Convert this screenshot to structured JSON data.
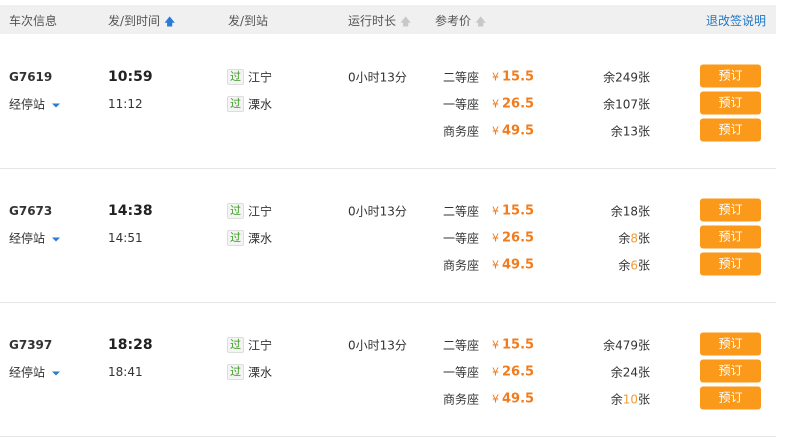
{
  "header": {
    "train_info": "车次信息",
    "dep_arr_time": "发/到时间",
    "dep_arr_station": "发/到站",
    "duration": "运行时长",
    "ref_price": "参考价",
    "refund_link": "退改签说明",
    "sort_icon_active": "arrow-up-icon",
    "colors": {
      "accent": "#2a7ad6",
      "price": "#f07c1e",
      "button": "#fb9a1a",
      "low_stock": "#f39c3c"
    }
  },
  "pass_badge": "过",
  "stops_label": "经停站",
  "book_label": "预订",
  "remaining_prefix": "余",
  "remaining_suffix": "张",
  "yen": "¥",
  "trains": [
    {
      "code": "G7619",
      "dep": "10:59",
      "arr": "11:12",
      "from": "江宁",
      "to": "溧水",
      "duration": "0小时13分",
      "seats": [
        {
          "type": "二等座",
          "price": "15.5",
          "remaining": "249",
          "low": false
        },
        {
          "type": "一等座",
          "price": "26.5",
          "remaining": "107",
          "low": false
        },
        {
          "type": "商务座",
          "price": "49.5",
          "remaining": "13",
          "low": false
        }
      ]
    },
    {
      "code": "G7673",
      "dep": "14:38",
      "arr": "14:51",
      "from": "江宁",
      "to": "溧水",
      "duration": "0小时13分",
      "seats": [
        {
          "type": "二等座",
          "price": "15.5",
          "remaining": "18",
          "low": false
        },
        {
          "type": "一等座",
          "price": "26.5",
          "remaining": "8",
          "low": true
        },
        {
          "type": "商务座",
          "price": "49.5",
          "remaining": "6",
          "low": true
        }
      ]
    },
    {
      "code": "G7397",
      "dep": "18:28",
      "arr": "18:41",
      "from": "江宁",
      "to": "溧水",
      "duration": "0小时13分",
      "seats": [
        {
          "type": "二等座",
          "price": "15.5",
          "remaining": "479",
          "low": false
        },
        {
          "type": "一等座",
          "price": "26.5",
          "remaining": "24",
          "low": false
        },
        {
          "type": "商务座",
          "price": "49.5",
          "remaining": "10",
          "low": true
        }
      ]
    }
  ]
}
